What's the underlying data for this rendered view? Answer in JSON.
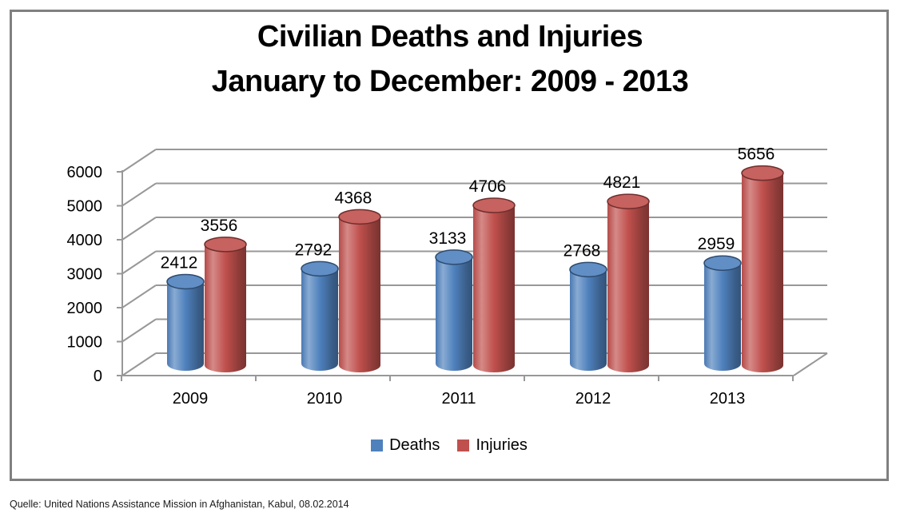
{
  "page": {
    "background": "#ffffff",
    "frame_border_color": "#808080",
    "gridline_color": "#989898"
  },
  "header": {
    "title": "Civilian Deaths and Injuries",
    "subtitle": "January to December: 2009 - 2013"
  },
  "footer": {
    "source": "Quelle: United Nations Assistance Mission in Afghanistan, Kabul, 08.02.2014"
  },
  "chart_data": {
    "type": "bar",
    "variant": "3d-cylinder",
    "title": "Civilian Deaths and Injuries",
    "subtitle": "January to December: 2009 - 2013",
    "categories": [
      "2009",
      "2010",
      "2011",
      "2012",
      "2013"
    ],
    "series": [
      {
        "name": "Deaths",
        "color": "#4F81BD",
        "values": [
          2412,
          2792,
          3133,
          2768,
          2959
        ]
      },
      {
        "name": "Injuries",
        "color": "#C0504D",
        "values": [
          3556,
          4368,
          4706,
          4821,
          5656
        ]
      }
    ],
    "xlabel": "",
    "ylabel": "",
    "ylim": [
      0,
      6000
    ],
    "ytick_step": 1000,
    "yticks": [
      0,
      1000,
      2000,
      3000,
      4000,
      5000,
      6000
    ],
    "grid": true,
    "data_labels": true,
    "legend_position": "bottom",
    "source": "Quelle: United Nations Assistance Mission in Afghanistan, Kabul, 08.02.2014"
  }
}
